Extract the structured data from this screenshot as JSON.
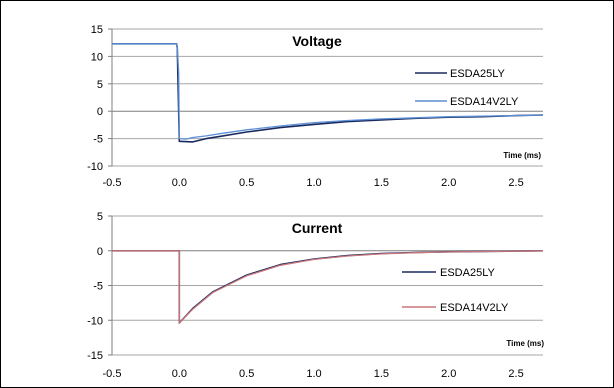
{
  "chart_data": [
    {
      "type": "line",
      "title": "Voltage",
      "xlabel": "Time (ms)",
      "ylabel": "",
      "xlim": [
        -0.5,
        2.7
      ],
      "ylim": [
        -10,
        15
      ],
      "x_ticks": [
        "-0.5",
        "0.0",
        "0.5",
        "1.0",
        "1.5",
        "2.0",
        "2.5"
      ],
      "y_ticks": [
        "15",
        "10",
        "5",
        "0",
        "-5",
        "-10"
      ],
      "grid": "horizontal",
      "legend_position": "right",
      "series": [
        {
          "name": "ESDA25LY",
          "color": "#1a2a5e",
          "points": [
            [
              -0.5,
              12.3
            ],
            [
              -0.02,
              12.3
            ],
            [
              -0.015,
              11.5
            ],
            [
              0.0,
              -5.5
            ],
            [
              0.1,
              -5.6
            ],
            [
              0.2,
              -5.0
            ],
            [
              0.3,
              -4.6
            ],
            [
              0.5,
              -3.8
            ],
            [
              0.75,
              -3.0
            ],
            [
              1.0,
              -2.4
            ],
            [
              1.25,
              -1.9
            ],
            [
              1.5,
              -1.6
            ],
            [
              1.75,
              -1.3
            ],
            [
              2.0,
              -1.1
            ],
            [
              2.25,
              -1.0
            ],
            [
              2.5,
              -0.8
            ],
            [
              2.7,
              -0.7
            ]
          ]
        },
        {
          "name": "ESDA14V2LY",
          "color": "#5b8fd6",
          "points": [
            [
              -0.5,
              12.3
            ],
            [
              -0.02,
              12.3
            ],
            [
              -0.015,
              11.5
            ],
            [
              -0.005,
              7.0
            ],
            [
              0.0,
              -5.0
            ],
            [
              0.05,
              -5.1
            ],
            [
              0.1,
              -4.8
            ],
            [
              0.2,
              -4.5
            ],
            [
              0.3,
              -4.1
            ],
            [
              0.5,
              -3.4
            ],
            [
              0.75,
              -2.7
            ],
            [
              1.0,
              -2.1
            ],
            [
              1.25,
              -1.7
            ],
            [
              1.5,
              -1.4
            ],
            [
              1.75,
              -1.2
            ],
            [
              2.0,
              -1.0
            ],
            [
              2.25,
              -0.9
            ],
            [
              2.5,
              -0.8
            ],
            [
              2.7,
              -0.7
            ]
          ]
        }
      ]
    },
    {
      "type": "line",
      "title": "Current",
      "xlabel": "Time (ms)",
      "ylabel": "",
      "xlim": [
        -0.5,
        2.7
      ],
      "ylim": [
        -15,
        5
      ],
      "x_ticks": [
        "-0.5",
        "0.0",
        "0.5",
        "1.0",
        "1.5",
        "2.0",
        "2.5"
      ],
      "y_ticks": [
        "5",
        "0",
        "-5",
        "-10",
        "-15"
      ],
      "grid": "horizontal",
      "legend_position": "right",
      "series": [
        {
          "name": "ESDA25LY",
          "color": "#1a2a5e",
          "points": [
            [
              -0.5,
              0
            ],
            [
              0.0,
              0
            ],
            [
              0.0,
              -10.4
            ],
            [
              0.1,
              -8.3
            ],
            [
              0.25,
              -5.9
            ],
            [
              0.5,
              -3.5
            ],
            [
              0.75,
              -2.0
            ],
            [
              1.0,
              -1.2
            ],
            [
              1.25,
              -0.7
            ],
            [
              1.5,
              -0.4
            ],
            [
              1.75,
              -0.25
            ],
            [
              2.0,
              -0.15
            ],
            [
              2.5,
              -0.05
            ],
            [
              2.7,
              0
            ]
          ]
        },
        {
          "name": "ESDA14V2LY",
          "color": "#c9767a",
          "points": [
            [
              -0.5,
              0
            ],
            [
              0.0,
              0
            ],
            [
              0.0,
              -10.4
            ],
            [
              0.1,
              -8.4
            ],
            [
              0.25,
              -6.0
            ],
            [
              0.5,
              -3.6
            ],
            [
              0.75,
              -2.1
            ],
            [
              1.0,
              -1.25
            ],
            [
              1.25,
              -0.75
            ],
            [
              1.5,
              -0.45
            ],
            [
              1.75,
              -0.28
            ],
            [
              2.0,
              -0.17
            ],
            [
              2.5,
              -0.06
            ],
            [
              2.7,
              0
            ]
          ]
        }
      ]
    }
  ]
}
